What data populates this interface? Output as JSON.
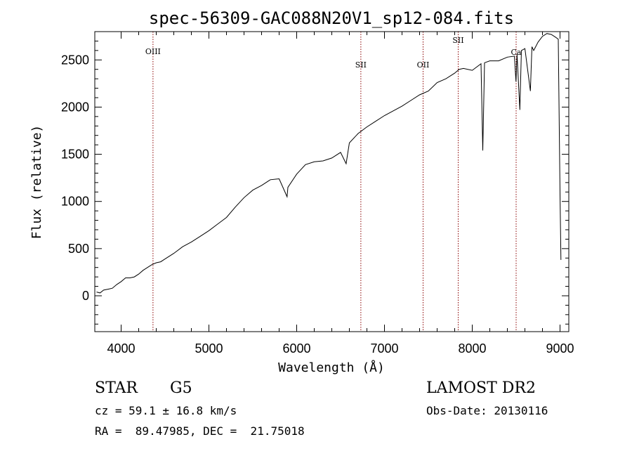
{
  "chart_data": {
    "type": "line",
    "title": "spec-56309-GAC088N20V1_sp12-084.fits",
    "xlabel": "Wavelength (Å)",
    "ylabel": "Flux (relative)",
    "xlim": [
      3700,
      9100
    ],
    "ylim": [
      -380,
      2800
    ],
    "xticks": [
      4000,
      5000,
      6000,
      7000,
      8000,
      9000
    ],
    "yticks": [
      0,
      500,
      1000,
      1500,
      2000,
      2500
    ],
    "xtick_labels": [
      "4000",
      "5000",
      "6000",
      "7000",
      "8000",
      "9000"
    ],
    "ytick_labels": [
      "0",
      "500",
      "1000",
      "1500",
      "2000",
      "2500"
    ],
    "grid": false,
    "line_color": "#000000",
    "marker_line_color": "#8b0000",
    "spectral_lines": [
      {
        "name": "OIII",
        "wavelength": 4363
      },
      {
        "name": "SII",
        "wavelength": 6731
      },
      {
        "name": "OII",
        "wavelength": 7440
      },
      {
        "name": "SII",
        "wavelength": 7840
      },
      {
        "name": "Ca",
        "wavelength": 8500
      }
    ],
    "series": [
      {
        "x": [
          3720,
          3760,
          3800,
          3850,
          3900,
          3950,
          4000,
          4050,
          4100,
          4150,
          4200,
          4250,
          4300,
          4350,
          4400,
          4450,
          4500,
          4600,
          4700,
          4800,
          4900,
          5000,
          5100,
          5200,
          5300,
          5400,
          5500,
          5600,
          5700,
          5800,
          5890,
          5900,
          6000,
          6100,
          6200,
          6300,
          6400,
          6500,
          6563,
          6600,
          6700,
          6800,
          6900,
          7000,
          7100,
          7200,
          7300,
          7400,
          7500,
          7600,
          7700,
          7800,
          7850,
          7900,
          8000,
          8100,
          8120,
          8140,
          8200,
          8300,
          8400,
          8480,
          8498,
          8510,
          8542,
          8560,
          8600,
          8662,
          8680,
          8700,
          8750,
          8800,
          8850,
          8900,
          8950,
          8980,
          9000,
          9010
        ],
        "y": [
          40,
          30,
          60,
          70,
          80,
          120,
          150,
          190,
          190,
          200,
          230,
          270,
          300,
          330,
          350,
          360,
          390,
          450,
          520,
          570,
          630,
          690,
          760,
          830,
          940,
          1040,
          1120,
          1170,
          1230,
          1240,
          1050,
          1150,
          1290,
          1390,
          1420,
          1430,
          1460,
          1520,
          1400,
          1620,
          1720,
          1790,
          1850,
          1910,
          1960,
          2010,
          2070,
          2130,
          2170,
          2260,
          2300,
          2360,
          2400,
          2410,
          2390,
          2460,
          1540,
          2470,
          2490,
          2490,
          2530,
          2540,
          2270,
          2560,
          1970,
          2600,
          2620,
          2170,
          2640,
          2600,
          2690,
          2750,
          2780,
          2770,
          2740,
          2720,
          1080,
          380
        ]
      }
    ]
  },
  "info": {
    "object_class": "STAR",
    "subclass": "G5",
    "survey": "LAMOST DR2",
    "redshift": "cz = 59.1 ± 16.8 km/s",
    "obs_date": "Obs-Date: 20130116",
    "coords": "RA =  89.47985, DEC =  21.75018"
  }
}
